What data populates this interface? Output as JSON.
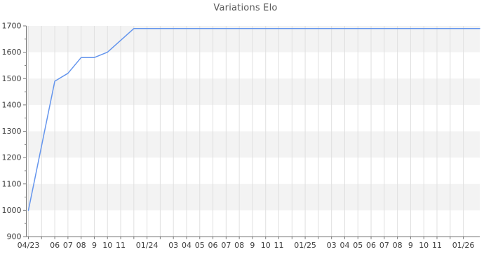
{
  "title": "Variations Elo",
  "chart_data": {
    "type": "line",
    "title": "Variations Elo",
    "x_axis": {
      "unit": "month",
      "first_month": "04/23",
      "last_month": "01/26",
      "tick_labels": [
        "04/23",
        "",
        "06",
        "07",
        "08",
        "9",
        "10",
        "11",
        "",
        "01/24",
        "",
        "03",
        "04",
        "05",
        "06",
        "07",
        "08",
        "9",
        "10",
        "11",
        "",
        "01/25",
        "",
        "03",
        "04",
        "05",
        "06",
        "07",
        "08",
        "9",
        "10",
        "11",
        "",
        "01/26"
      ],
      "right_padding_months": 1.3
    },
    "y_axis": {
      "min": 900,
      "max": 1700,
      "major_step": 100,
      "minor_step": 50,
      "tick_labels": [
        "900",
        "1000",
        "1100",
        "1200",
        "1300",
        "1400",
        "1500",
        "1600",
        "1700"
      ]
    },
    "series": [
      {
        "name": "Elo",
        "color": "#6495ED",
        "points": [
          [
            0,
            1000
          ],
          [
            2,
            1490
          ],
          [
            3,
            1520
          ],
          [
            4,
            1580
          ],
          [
            5,
            1580
          ],
          [
            6,
            1600
          ],
          [
            8,
            1690
          ],
          [
            34.3,
            1690
          ]
        ]
      }
    ],
    "legend": null,
    "grid": {
      "vertical_monthly_gridlines": true,
      "horizontal_gridlines": false,
      "alternating_horizontal_bands": true
    },
    "colors": {
      "line": "#6495ED",
      "band": "#f3f3f3",
      "grid": "#e0e0e0",
      "axis": "#777777",
      "tick_label": "#3d3d3d",
      "title": "#575757",
      "background": "#ffffff"
    }
  }
}
